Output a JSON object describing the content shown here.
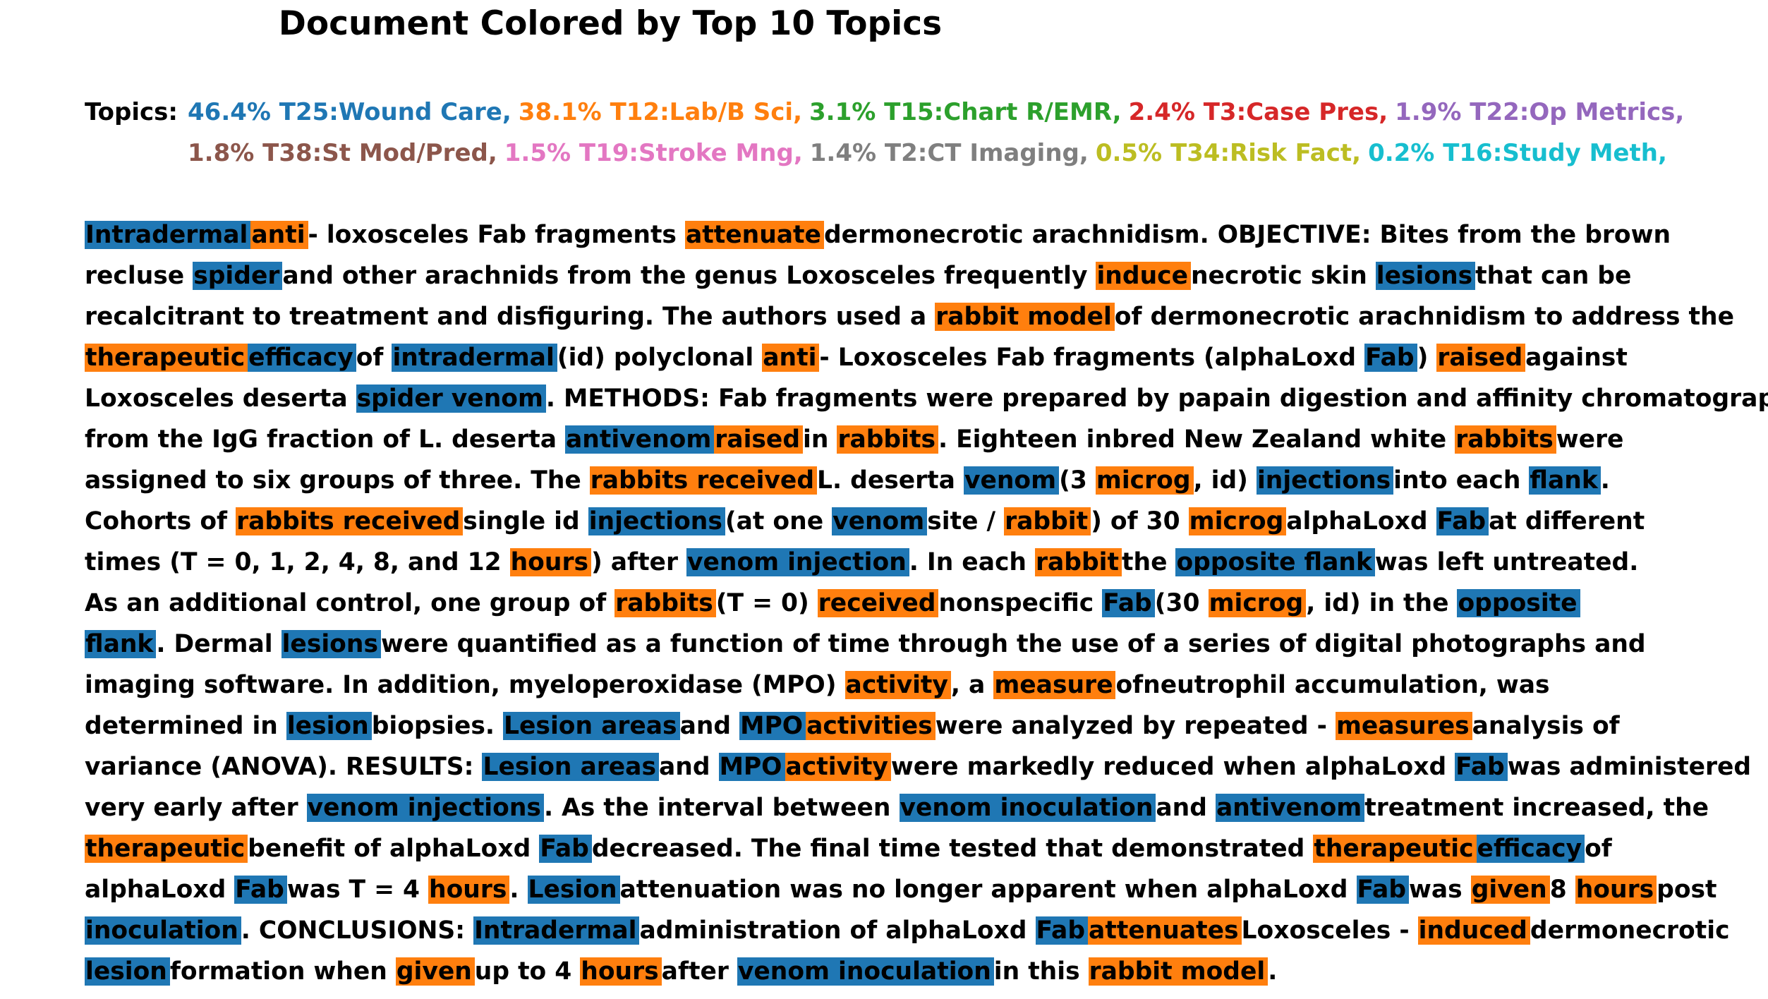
{
  "title": "Document Colored by Top 10 Topics",
  "topics_label": "Topics:",
  "topics": [
    {
      "text": "46.4% T25:Wound Care,",
      "color": "#1f77b4",
      "line": 1
    },
    {
      "text": "38.1% T12:Lab/B Sci,",
      "color": "#ff7f0e",
      "line": 1
    },
    {
      "text": "3.1% T15:Chart R/EMR,",
      "color": "#2ca02c",
      "line": 1
    },
    {
      "text": "2.4% T3:Case Pres,",
      "color": "#d62728",
      "line": 1
    },
    {
      "text": "1.9% T22:Op Metrics,",
      "color": "#9467bd",
      "line": 1
    },
    {
      "text": "1.8% T38:St Mod/Pred,",
      "color": "#8c564b",
      "line": 2
    },
    {
      "text": "1.5% T19:Stroke Mng,",
      "color": "#e377c2",
      "line": 2
    },
    {
      "text": "1.4% T2:CT Imaging,",
      "color": "#7f7f7f",
      "line": 2
    },
    {
      "text": "0.5% T34:Risk Fact,",
      "color": "#bcbd22",
      "line": 2
    },
    {
      "text": "0.2% T16:Study Meth,",
      "color": "#17becf",
      "line": 2
    }
  ],
  "highlight_colors": {
    "T25": "#1f77b4",
    "T12": "#ff7f0e"
  },
  "lines": [
    [
      [
        "Intradermal",
        "T25"
      ],
      [
        "anti",
        "T12"
      ],
      [
        "- loxosceles Fab fragments "
      ],
      [
        "attenuate",
        "T12"
      ],
      [
        "dermonecrotic arachnidism. OBJECTIVE: Bites from the brown"
      ]
    ],
    [
      [
        "recluse "
      ],
      [
        "spider",
        "T25"
      ],
      [
        "and other arachnids from the genus Loxosceles frequently "
      ],
      [
        "induce",
        "T12"
      ],
      [
        "necrotic skin "
      ],
      [
        "lesions",
        "T25"
      ],
      [
        "that can be"
      ]
    ],
    [
      [
        "recalcitrant to treatment and disfiguring. The authors used a "
      ],
      [
        "rabbit model",
        "T12"
      ],
      [
        "of dermonecrotic arachnidism to address the"
      ]
    ],
    [
      [
        "therapeutic",
        "T12"
      ],
      [
        "efficacy",
        "T25"
      ],
      [
        "of "
      ],
      [
        "intradermal",
        "T25"
      ],
      [
        "(id) polyclonal "
      ],
      [
        "anti",
        "T12"
      ],
      [
        "- Loxosceles Fab fragments (alphaLoxd "
      ],
      [
        "Fab",
        "T25"
      ],
      [
        ") "
      ],
      [
        "raised",
        "T12"
      ],
      [
        "against"
      ]
    ],
    [
      [
        "Loxosceles deserta "
      ],
      [
        "spider venom",
        "T25"
      ],
      [
        ". METHODS: Fab fragments were prepared by papain digestion and affinity chromatography"
      ]
    ],
    [
      [
        "from the IgG fraction of L. deserta "
      ],
      [
        "antivenom",
        "T25"
      ],
      [
        "raised",
        "T12"
      ],
      [
        "in "
      ],
      [
        "rabbits",
        "T12"
      ],
      [
        ". Eighteen inbred New Zealand white "
      ],
      [
        "rabbits",
        "T12"
      ],
      [
        "were"
      ]
    ],
    [
      [
        "assigned to six groups of three. The "
      ],
      [
        "rabbits received",
        "T12"
      ],
      [
        "L. deserta "
      ],
      [
        "venom",
        "T25"
      ],
      [
        "(3 "
      ],
      [
        "microg",
        "T12"
      ],
      [
        ", id) "
      ],
      [
        "injections",
        "T25"
      ],
      [
        "into each "
      ],
      [
        "flank",
        "T25"
      ],
      [
        "."
      ]
    ],
    [
      [
        "Cohorts of "
      ],
      [
        "rabbits received",
        "T12"
      ],
      [
        "single id "
      ],
      [
        "injections",
        "T25"
      ],
      [
        "(at one "
      ],
      [
        "venom",
        "T25"
      ],
      [
        "site / "
      ],
      [
        "rabbit",
        "T12"
      ],
      [
        ") of 30 "
      ],
      [
        "microg",
        "T12"
      ],
      [
        "alphaLoxd "
      ],
      [
        "Fab",
        "T25"
      ],
      [
        "at different"
      ]
    ],
    [
      [
        "times (T = 0, 1, 2, 4, 8, and 12 "
      ],
      [
        "hours",
        "T12"
      ],
      [
        ") after "
      ],
      [
        "venom injection",
        "T25"
      ],
      [
        ". In each "
      ],
      [
        "rabbit",
        "T12"
      ],
      [
        "the "
      ],
      [
        "opposite flank",
        "T25"
      ],
      [
        "was left untreated."
      ]
    ],
    [
      [
        "As an additional control, one group of "
      ],
      [
        "rabbits",
        "T12"
      ],
      [
        "(T = 0) "
      ],
      [
        "received",
        "T12"
      ],
      [
        "nonspecific "
      ],
      [
        "Fab",
        "T25"
      ],
      [
        "(30 "
      ],
      [
        "microg",
        "T12"
      ],
      [
        ", id) in the "
      ],
      [
        "opposite",
        "T25"
      ]
    ],
    [
      [
        "flank",
        "T25"
      ],
      [
        ". Dermal "
      ],
      [
        "lesions",
        "T25"
      ],
      [
        "were quantified as a function of time through the use of a series of digital photographs and"
      ]
    ],
    [
      [
        "imaging software. In addition, myeloperoxidase (MPO) "
      ],
      [
        "activity",
        "T12"
      ],
      [
        ", a "
      ],
      [
        "measure",
        "T12"
      ],
      [
        "ofneutrophil accumulation, was"
      ]
    ],
    [
      [
        "determined in "
      ],
      [
        "lesion",
        "T25"
      ],
      [
        "biopsies. "
      ],
      [
        "Lesion areas",
        "T25"
      ],
      [
        "and "
      ],
      [
        "MPO",
        "T25"
      ],
      [
        "activities",
        "T12"
      ],
      [
        "were analyzed by repeated - "
      ],
      [
        "measures",
        "T12"
      ],
      [
        "analysis of"
      ]
    ],
    [
      [
        "variance (ANOVA). RESULTS: "
      ],
      [
        "Lesion areas",
        "T25"
      ],
      [
        "and "
      ],
      [
        "MPO",
        "T25"
      ],
      [
        "activity",
        "T12"
      ],
      [
        "were markedly reduced when alphaLoxd "
      ],
      [
        "Fab",
        "T25"
      ],
      [
        "was administered"
      ]
    ],
    [
      [
        "very early after "
      ],
      [
        "venom injections",
        "T25"
      ],
      [
        ". As the interval between "
      ],
      [
        "venom inoculation",
        "T25"
      ],
      [
        "and "
      ],
      [
        "antivenom",
        "T25"
      ],
      [
        "treatment increased, the"
      ]
    ],
    [
      [
        "therapeutic",
        "T12"
      ],
      [
        "benefit of alphaLoxd "
      ],
      [
        "Fab",
        "T25"
      ],
      [
        "decreased. The final time tested that demonstrated "
      ],
      [
        "therapeutic",
        "T12"
      ],
      [
        "efficacy",
        "T25"
      ],
      [
        "of"
      ]
    ],
    [
      [
        "alphaLoxd "
      ],
      [
        "Fab",
        "T25"
      ],
      [
        "was T = 4 "
      ],
      [
        "hours",
        "T12"
      ],
      [
        ". "
      ],
      [
        "Lesion",
        "T25"
      ],
      [
        "attenuation was no longer apparent when alphaLoxd "
      ],
      [
        "Fab",
        "T25"
      ],
      [
        "was "
      ],
      [
        "given",
        "T12"
      ],
      [
        "8 "
      ],
      [
        "hours",
        "T12"
      ],
      [
        "post"
      ]
    ],
    [
      [
        "inoculation",
        "T25"
      ],
      [
        ". CONCLUSIONS: "
      ],
      [
        "Intradermal",
        "T25"
      ],
      [
        "administration of alphaLoxd "
      ],
      [
        "Fab",
        "T25"
      ],
      [
        "attenuates",
        "T12"
      ],
      [
        "Loxosceles - "
      ],
      [
        "induced",
        "T12"
      ],
      [
        "dermonecrotic"
      ]
    ],
    [
      [
        "lesion",
        "T25"
      ],
      [
        "formation when "
      ],
      [
        "given",
        "T12"
      ],
      [
        "up to 4 "
      ],
      [
        "hours",
        "T12"
      ],
      [
        "after "
      ],
      [
        "venom inoculation",
        "T25"
      ],
      [
        "in this "
      ],
      [
        "rabbit model",
        "T12"
      ],
      [
        "."
      ]
    ]
  ]
}
